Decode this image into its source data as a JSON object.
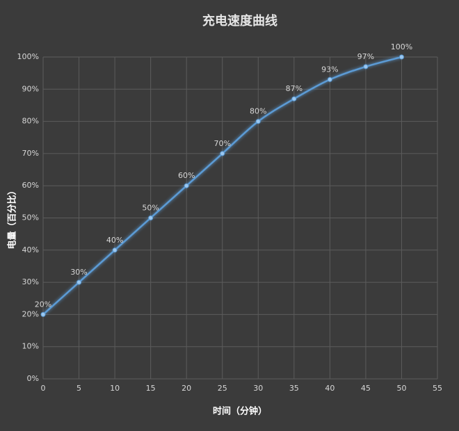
{
  "chart_data": {
    "type": "line",
    "title": "充电速度曲线",
    "x_label": "时间（分钟）",
    "y_label": "电量（百分比）",
    "x": [
      0,
      5,
      10,
      15,
      20,
      25,
      30,
      35,
      40,
      45,
      50
    ],
    "series": [
      {
        "name": "电量",
        "color": "#5b9bd5",
        "values": [
          20,
          30,
          40,
          50,
          60,
          70,
          80,
          87,
          93,
          97,
          100
        ],
        "value_labels": [
          "20%",
          "30%",
          "40%",
          "50%",
          "60%",
          "70%",
          "80%",
          "87%",
          "93%",
          "97%",
          "100%"
        ]
      }
    ],
    "xlim": [
      0,
      55
    ],
    "xticks": [
      0,
      5,
      10,
      15,
      20,
      25,
      30,
      35,
      40,
      45,
      50,
      55
    ],
    "ylim": [
      0,
      100
    ],
    "yticks": [
      {
        "value": 0,
        "label": "0%"
      },
      {
        "value": 10,
        "label": "10%"
      },
      {
        "value": 20,
        "label": "20%"
      },
      {
        "value": 30,
        "label": "30%"
      },
      {
        "value": 40,
        "label": "40%"
      },
      {
        "value": 50,
        "label": "50%"
      },
      {
        "value": 60,
        "label": "60%"
      },
      {
        "value": 70,
        "label": "70%"
      },
      {
        "value": 80,
        "label": "80%"
      },
      {
        "value": 90,
        "label": "90%"
      },
      {
        "value": 100,
        "label": "100%"
      }
    ],
    "grid": true
  }
}
